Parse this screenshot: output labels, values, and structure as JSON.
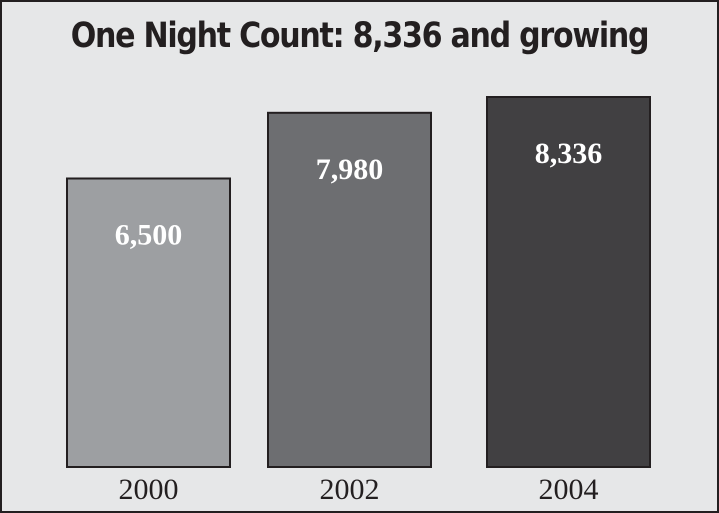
{
  "chart_data": {
    "type": "bar",
    "title": "One Night Count: 8,336 and growing",
    "xlabel": "",
    "ylabel": "",
    "categories": [
      "2000",
      "2002",
      "2004"
    ],
    "values": [
      6500,
      7980,
      8336
    ],
    "data_labels": [
      "6,500",
      "7,980",
      "8,336"
    ],
    "bar_colors": [
      "#9d9fa2",
      "#6d6e71",
      "#414042"
    ],
    "frame_background": "#e6e7e8",
    "outline_color": "#231f20",
    "grid": false,
    "legend": "none"
  }
}
